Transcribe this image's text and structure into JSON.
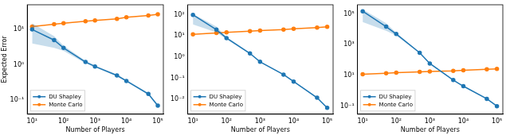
{
  "chart_data": [
    {
      "type": "line",
      "log": true,
      "grid": false,
      "legend": "lower left",
      "x_label": "Number of Players",
      "y_label": "Expected Error",
      "xlim": [
        7,
        150000
      ],
      "xticks": [
        {
          "value": 10,
          "label": "10¹"
        },
        {
          "value": 100,
          "label": "10²"
        },
        {
          "value": 1000,
          "label": "10³"
        },
        {
          "value": 10000,
          "label": "10⁴"
        },
        {
          "value": 100000,
          "label": "10⁵"
        }
      ],
      "ylim": [
        0.04,
        50
      ],
      "yticks": [
        {
          "value": 0.1,
          "label": "10⁻¹"
        },
        {
          "value": 1,
          "label": "10⁰"
        },
        {
          "value": 10,
          "label": "10¹"
        }
      ],
      "x": [
        10,
        50,
        100,
        500,
        1000,
        5000,
        10000,
        50000,
        100000
      ],
      "series": [
        {
          "name": "DU Shapley",
          "color": "#1f77b4",
          "marker": "circle",
          "line_style": "solid",
          "values": [
            10,
            5,
            3,
            1.2,
            0.9,
            0.5,
            0.35,
            0.15,
            0.07
          ],
          "lower": [
            4,
            3,
            2.5,
            1.1,
            0.85,
            0.47,
            0.33,
            0.14,
            0.065
          ],
          "upper": [
            15,
            6.5,
            3.5,
            1.3,
            0.95,
            0.53,
            0.37,
            0.16,
            0.075
          ]
        },
        {
          "name": "Monte Carlo",
          "color": "#ff7f0e",
          "marker": "circle",
          "line_style": "solid",
          "values": [
            12,
            14,
            15,
            17,
            18,
            20,
            22,
            25,
            27
          ]
        }
      ]
    },
    {
      "type": "line",
      "log": true,
      "grid": false,
      "legend": "lower left",
      "x_label": "Number of Players",
      "xlim": [
        7,
        150000
      ],
      "xticks": [
        {
          "value": 10,
          "label": "10¹"
        },
        {
          "value": 100,
          "label": "10²"
        },
        {
          "value": 1000,
          "label": "10³"
        },
        {
          "value": 10000,
          "label": "10⁴"
        },
        {
          "value": 100000,
          "label": "10⁵"
        }
      ],
      "ylim": [
        0.002,
        300
      ],
      "yticks": [
        {
          "value": 0.01,
          "label": "10⁻²"
        },
        {
          "value": 0.1,
          "label": "10⁻¹"
        },
        {
          "value": 1,
          "label": "10⁰"
        },
        {
          "value": 10,
          "label": "10¹"
        },
        {
          "value": 100,
          "label": "10²"
        }
      ],
      "x": [
        10,
        50,
        100,
        500,
        1000,
        5000,
        10000,
        50000,
        100000
      ],
      "series": [
        {
          "name": "DU Shapley",
          "color": "#1f77b4",
          "marker": "circle",
          "line_style": "solid",
          "values": [
            100,
            20,
            8,
            1.5,
            0.6,
            0.15,
            0.07,
            0.012,
            0.004
          ],
          "lower": [
            35,
            15,
            7,
            1.4,
            0.57,
            0.14,
            0.066,
            0.011,
            0.0037
          ],
          "upper": [
            110,
            28,
            9,
            1.6,
            0.63,
            0.16,
            0.074,
            0.013,
            0.0043
          ]
        },
        {
          "name": "Monte Carlo",
          "color": "#ff7f0e",
          "marker": "circle",
          "line_style": "solid",
          "values": [
            12,
            14,
            15,
            17,
            18,
            20,
            22,
            25,
            27
          ]
        }
      ]
    },
    {
      "type": "line",
      "log": true,
      "grid": false,
      "legend": "lower left",
      "x_label": "Number of Players",
      "xlim": [
        7,
        150000
      ],
      "xticks": [
        {
          "value": 10,
          "label": "10¹"
        },
        {
          "value": 100,
          "label": "10²"
        },
        {
          "value": 1000,
          "label": "10³"
        },
        {
          "value": 10000,
          "label": "10⁴"
        },
        {
          "value": 100000,
          "label": "10⁵"
        }
      ],
      "ylim": [
        0.03,
        400000
      ],
      "yticks": [
        {
          "value": 0.1,
          "label": "10⁻¹"
        },
        {
          "value": 10,
          "label": "10¹"
        },
        {
          "value": 1000,
          "label": "10³"
        },
        {
          "value": 100000,
          "label": "10⁵"
        }
      ],
      "x": [
        10,
        50,
        100,
        500,
        1000,
        5000,
        10000,
        50000,
        100000
      ],
      "series": [
        {
          "name": "DU Shapley",
          "color": "#1f77b4",
          "marker": "circle",
          "line_style": "solid",
          "values": [
            150000,
            15000,
            5000,
            300,
            60,
            5,
            2,
            0.3,
            0.1
          ],
          "lower": [
            30000,
            8000,
            4000,
            270,
            55,
            4.6,
            1.85,
            0.28,
            0.093
          ],
          "upper": [
            200000,
            25000,
            6000,
            330,
            65,
            5.4,
            2.15,
            0.32,
            0.107
          ]
        },
        {
          "name": "Monte Carlo",
          "color": "#ff7f0e",
          "marker": "circle",
          "line_style": "solid",
          "values": [
            12,
            14,
            15,
            17,
            18,
            20,
            22,
            25,
            27
          ]
        }
      ]
    }
  ]
}
